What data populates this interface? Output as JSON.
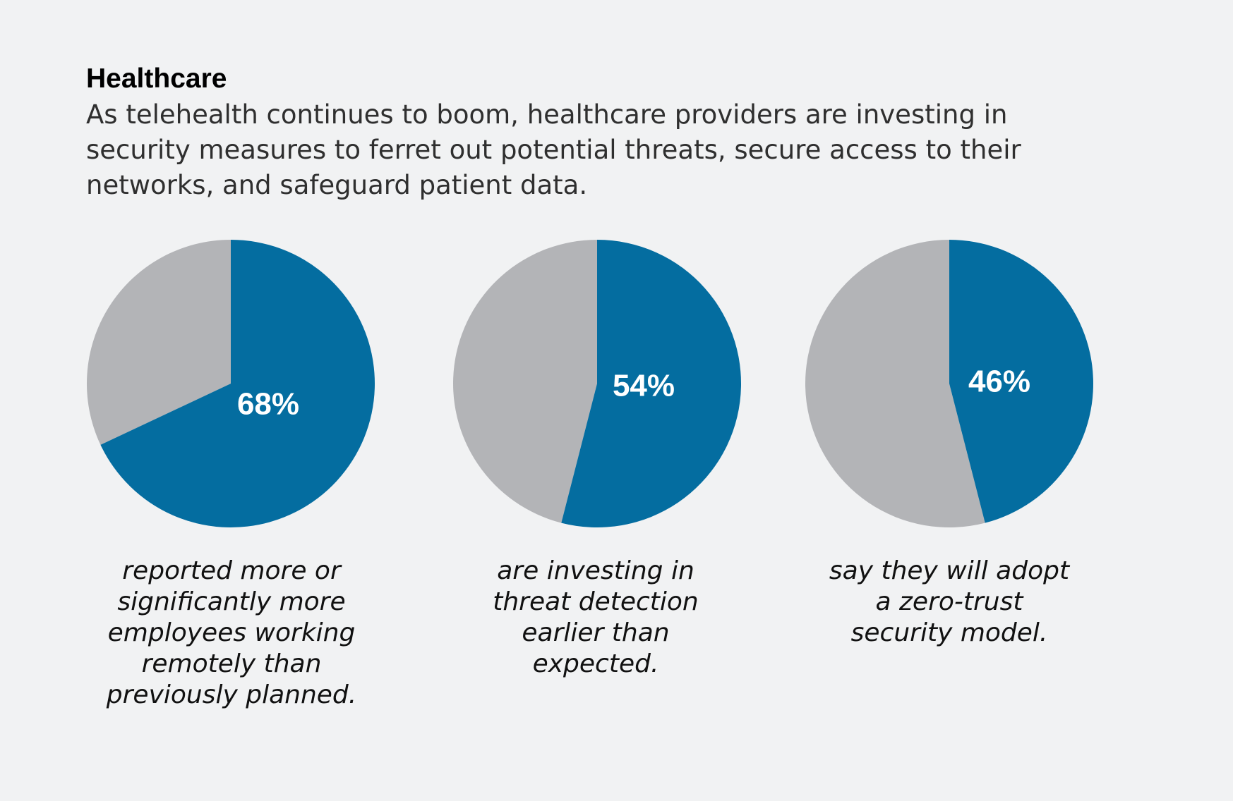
{
  "header": {
    "title": "Healthcare",
    "subtitle": "As telehealth continues to boom, healthcare providers are investing in security measures to ferret out potential threats, secure access to their networks, and safeguard patient data."
  },
  "colors": {
    "primary": "#046da0",
    "remainder": "#b3b4b7",
    "background": "#f1f2f3",
    "label": "#ffffff"
  },
  "chart_data": [
    {
      "type": "pie",
      "values": [
        68,
        32
      ],
      "label": "68%",
      "caption": "reported more or\nsignificantly more\nemployees working\nremotely than\npreviously planned."
    },
    {
      "type": "pie",
      "values": [
        54,
        46
      ],
      "label": "54%",
      "caption": "are investing in\nthreat detection\nearlier than\nexpected."
    },
    {
      "type": "pie",
      "values": [
        46,
        54
      ],
      "label": "46%",
      "caption": "say they will adopt\na zero-trust\nsecurity model."
    }
  ]
}
